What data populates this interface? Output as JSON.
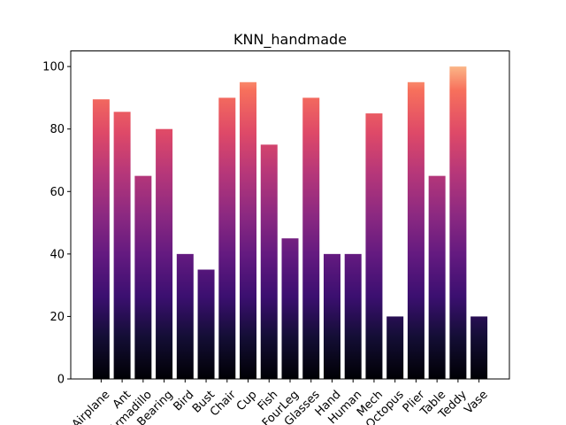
{
  "chart_data": {
    "type": "bar",
    "title": "KNN_handmade",
    "xlabel": "",
    "ylabel": "",
    "categories": [
      "Airplane",
      "Ant",
      "Armadillo",
      "Bearing",
      "Bird",
      "Bust",
      "Chair",
      "Cup",
      "Fish",
      "FourLeg",
      "Glasses",
      "Hand",
      "Human",
      "Mech",
      "Octopus",
      "Plier",
      "Table",
      "Teddy",
      "Vase"
    ],
    "values": [
      89.5,
      85.5,
      65,
      80,
      40,
      35,
      90,
      95,
      75,
      45,
      90,
      40,
      40,
      85,
      20,
      95,
      65,
      100,
      20
    ],
    "ylim": [
      0,
      105
    ],
    "yticks": [
      0,
      20,
      40,
      60,
      80,
      100
    ],
    "grid": false,
    "legend": "none",
    "colormap": "magma",
    "colors": {
      "gradient_bottom": "#000004",
      "gradient_mid_dark": "#51127c",
      "gradient_mid": "#b73779",
      "gradient_mid_light": "#fc8961",
      "gradient_top": "#fcfdbf"
    }
  }
}
